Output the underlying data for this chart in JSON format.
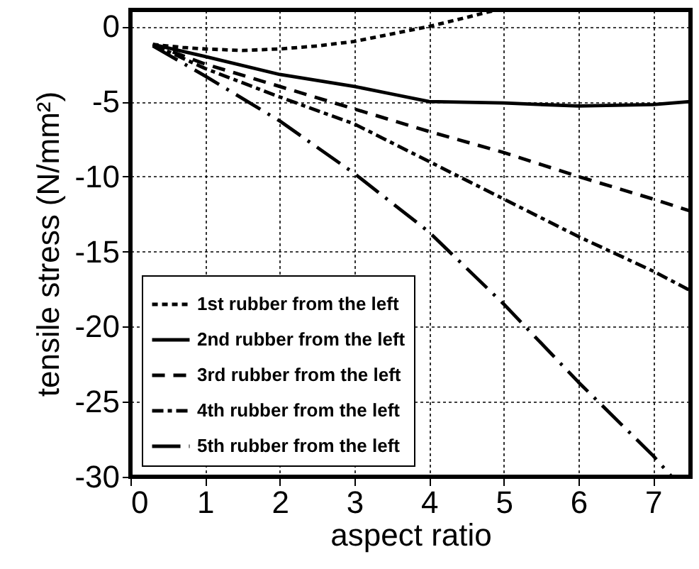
{
  "chart_data": {
    "type": "line",
    "xlabel": "aspect ratio",
    "ylabel": "tensile stress (N/mm²)",
    "xlim": [
      0,
      7.5
    ],
    "ylim": [
      -30,
      1.1
    ],
    "xticks": [
      0,
      1,
      2,
      3,
      4,
      5,
      6,
      7
    ],
    "yticks": [
      -30,
      -25,
      -20,
      -15,
      -10,
      -5,
      0
    ],
    "grid": true,
    "legend": "bottom left",
    "marker": "none",
    "series": [
      {
        "name": "1st rubber from the left",
        "color": "#000000",
        "line_style": "dotted",
        "x": [
          0.3,
          0.7,
          1,
          1.5,
          2,
          2.5,
          3,
          3.5,
          4,
          4.5,
          4.9
        ],
        "values": [
          -1.2,
          -1.4,
          -1.5,
          -1.6,
          -1.5,
          -1.3,
          -1.0,
          -0.5,
          0,
          0.6,
          1.1
        ]
      },
      {
        "name": "2nd rubber from the left",
        "color": "#000000",
        "line_style": "solid",
        "x": [
          0.3,
          1,
          2,
          3,
          3.5,
          4,
          5,
          6,
          7,
          7.5
        ],
        "values": [
          -1.2,
          -2,
          -3.2,
          -4.0,
          -4.5,
          -5,
          -5.1,
          -5.3,
          -5.2,
          -5.0
        ]
      },
      {
        "name": "3rd rubber from the left",
        "color": "#000000",
        "line_style": "dashed",
        "x": [
          0.3,
          1,
          2,
          3,
          4,
          5,
          6,
          7,
          7.5
        ],
        "values": [
          -1.2,
          -2.5,
          -4,
          -5.5,
          -7,
          -8.4,
          -10,
          -11.5,
          -12.3
        ]
      },
      {
        "name": "4th rubber from the left",
        "color": "#000000",
        "line_style": "dotted",
        "x": [
          0.3,
          1,
          2,
          3,
          4,
          5,
          6,
          7,
          7.5
        ],
        "values": [
          -1.2,
          -2.8,
          -4.7,
          -6.5,
          -9,
          -11.5,
          -14,
          -16.3,
          -17.6
        ]
      },
      {
        "name": "5th rubber from the left",
        "color": "#000000",
        "line_style": "dashed",
        "x": [
          0.3,
          1,
          2,
          3,
          4,
          5,
          6,
          7,
          7.25
        ],
        "values": [
          -1.3,
          -3.3,
          -6.3,
          -9.8,
          -13.7,
          -18.5,
          -23.7,
          -28.6,
          -30
        ]
      }
    ]
  }
}
